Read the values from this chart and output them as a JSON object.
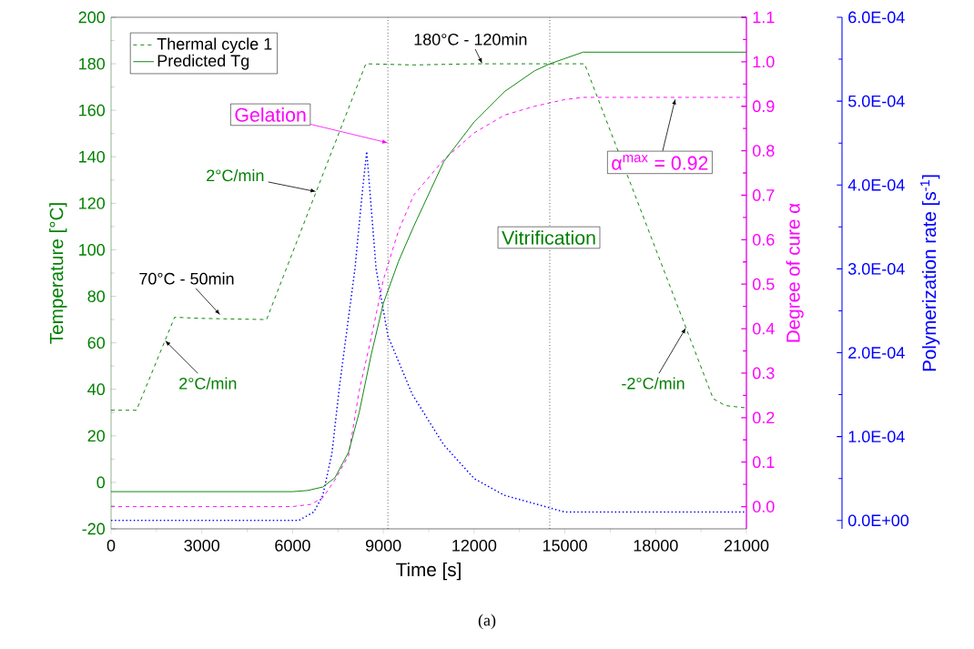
{
  "chart_data": {
    "type": "line",
    "xlabel": "Time [s]",
    "ylabel": "Temperature [°C]",
    "y2label": "Degree of cure α",
    "y3label": "Polymerization rate [s$^{-1}$]",
    "xlim": [
      0,
      21000
    ],
    "xticks": [
      0,
      3000,
      6000,
      9000,
      12000,
      15000,
      18000,
      21000
    ],
    "ylim": [
      -20,
      200
    ],
    "yticks": [
      -20,
      0,
      20,
      40,
      60,
      80,
      100,
      120,
      140,
      160,
      180,
      200
    ],
    "y2lim": [
      -0.05,
      1.1
    ],
    "y2ticks": [
      {
        "value": 0,
        "label": "0.0"
      },
      0.1,
      0.2,
      0.3,
      0.4,
      0.5,
      0.6,
      0.7,
      0.8,
      0.9,
      {
        "value": 1,
        "label": "1.0"
      },
      1.1
    ],
    "y3lim": [
      -1e-05,
      0.0006
    ],
    "y3ticks": [
      {
        "value": 0,
        "label": "0.0E+00"
      },
      {
        "value": 0.0001,
        "label": "1.0E-04"
      },
      {
        "value": 0.0002,
        "label": "2.0E-04"
      },
      {
        "value": 0.0003,
        "label": "3.0E-04"
      },
      {
        "value": 0.0004,
        "label": "4.0E-04"
      },
      {
        "value": 0.0005,
        "label": "5.0E-04"
      },
      {
        "value": 0.0006,
        "label": "6.0E-04"
      }
    ],
    "legend": "top left",
    "series": [
      {
        "name": "Thermal cycle 1",
        "color": "#008000",
        "line_style": "dashed",
        "axis": "y",
        "x": [
          0,
          840,
          2100,
          3000,
          5140,
          8420,
          10000,
          12000,
          15650,
          19900,
          20300,
          21000
        ],
        "values": [
          31,
          31,
          71,
          70.5,
          70,
          180,
          179.5,
          180,
          180,
          36,
          33,
          32
        ]
      },
      {
        "name": "Predicted Tg",
        "color": "#008000",
        "line_style": "solid",
        "axis": "y",
        "x": [
          0,
          6000,
          6500,
          7000,
          7400,
          7850,
          8200,
          8600,
          9000,
          9500,
          10000,
          11000,
          12000,
          13000,
          14000,
          14500,
          15600,
          21000
        ],
        "values": [
          -4,
          -4,
          -3.5,
          -2,
          2,
          13,
          30,
          55,
          77,
          95,
          110,
          138,
          155,
          168,
          177,
          180,
          185,
          185
        ]
      },
      {
        "color": "#ff00ff",
        "line_style": "dashed",
        "axis": "y2",
        "x": [
          0,
          6000,
          6600,
          7000,
          7400,
          7850,
          8200,
          8600,
          9000,
          9500,
          10000,
          11000,
          12000,
          13000,
          14000,
          15000,
          15600,
          21000
        ],
        "values": [
          0,
          0,
          0.005,
          0.02,
          0.06,
          0.115,
          0.26,
          0.38,
          0.51,
          0.62,
          0.7,
          0.78,
          0.84,
          0.88,
          0.9,
          0.915,
          0.92,
          0.92
        ]
      },
      {
        "color": "#0000ff",
        "line_style": "dotted",
        "axis": "y3",
        "x": [
          0,
          5500,
          6200,
          6700,
          7000,
          7300,
          7550,
          8060,
          8300,
          8450,
          8760,
          9150,
          9960,
          11000,
          12000,
          13000,
          14000,
          15000,
          16000,
          21000
        ],
        "values": [
          0,
          0,
          0,
          1e-05,
          3e-05,
          8e-05,
          0.00016,
          0.0003,
          0.00039,
          0.00044,
          0.0003,
          0.00022,
          0.00015,
          9e-05,
          5e-05,
          3e-05,
          2e-05,
          1e-05,
          1e-05,
          1e-05
        ]
      }
    ],
    "ref_lines": [
      {
        "axis": "x",
        "value": 9150,
        "color": "#000000",
        "line_style": "dotted"
      },
      {
        "axis": "x",
        "value": 14500,
        "color": "#000000",
        "line_style": "dotted"
      }
    ],
    "annotations": [
      {
        "text": "180°C - 120min",
        "x": 12270,
        "y": 180
      },
      {
        "text": "Gelation",
        "x": 9150,
        "y": 146
      },
      {
        "text": "2°C/min",
        "x": 6780,
        "y": 125
      },
      {
        "text": "70°C - 50min",
        "x": 3610,
        "y": 72
      },
      {
        "text": "2°C/min",
        "x": 1785,
        "y": 61
      },
      {
        "text": "-2°C/min",
        "x": 19000,
        "y": 66.5
      },
      {
        "text": "α$^{max}$ = 0.92",
        "x": 18650,
        "y": 165
      },
      "Vitrification",
      "(a)"
    ]
  }
}
